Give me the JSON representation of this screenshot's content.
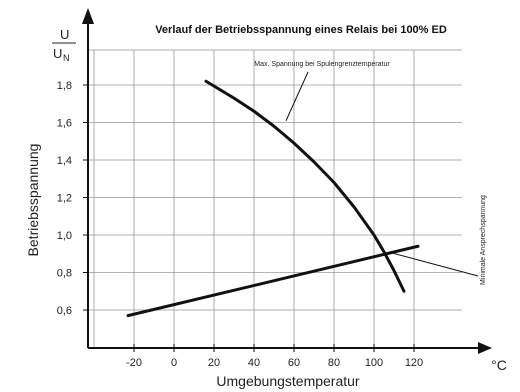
{
  "chart_data": {
    "type": "line",
    "title": "Verlauf der Betriebsspannung eines Relais bei 100% ED",
    "xlabel": "Umgebungstemperatur",
    "ylabel": "Betriebsspannung",
    "x_unit": "°C",
    "y_unit": {
      "numerator": "U",
      "denominator": "U",
      "denominator_sub": "N"
    },
    "xlim": [
      -40,
      125
    ],
    "ylim": [
      0.4,
      1.95
    ],
    "x_ticks": [
      -20,
      0,
      20,
      40,
      60,
      80,
      100,
      120
    ],
    "x_tick_labels": [
      "-20",
      "0",
      "20",
      "40",
      "60",
      "80",
      "100",
      "120"
    ],
    "y_ticks": [
      0.6,
      0.8,
      1.0,
      1.2,
      1.4,
      1.6,
      1.8
    ],
    "y_tick_labels": [
      "0,6",
      "0,8",
      "1,0",
      "1,2",
      "1,4",
      "1,6",
      "1,8"
    ],
    "grid": true,
    "series": [
      {
        "name": "Max. Spannung bei Spulengrenztemperatur",
        "x": [
          16,
          30,
          40,
          50,
          60,
          70,
          80,
          90,
          100,
          105,
          110,
          115
        ],
        "y": [
          1.82,
          1.73,
          1.66,
          1.58,
          1.49,
          1.39,
          1.28,
          1.15,
          1.0,
          0.91,
          0.81,
          0.7
        ],
        "annotation_text": "Max. Spannung bei Spulengrenztemperatur",
        "annotation_anchor_x": 45
      },
      {
        "name": "Minimale Ansprechspannung",
        "x": [
          -23,
          122
        ],
        "y": [
          0.57,
          0.94
        ],
        "annotation_text": "Minimale Ansprechspannung",
        "annotation_anchor_x": 108
      }
    ]
  }
}
